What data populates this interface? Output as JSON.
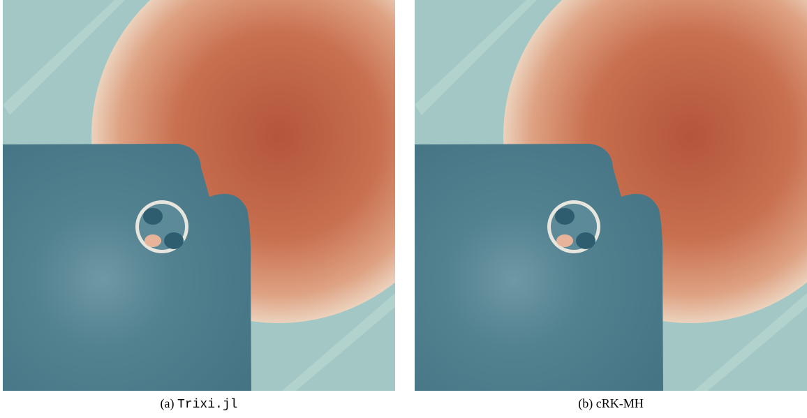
{
  "figures": [
    {
      "label": "(a)",
      "caption": "Trixi.jl"
    },
    {
      "label": "(b)",
      "caption": "cRK-MH"
    }
  ]
}
